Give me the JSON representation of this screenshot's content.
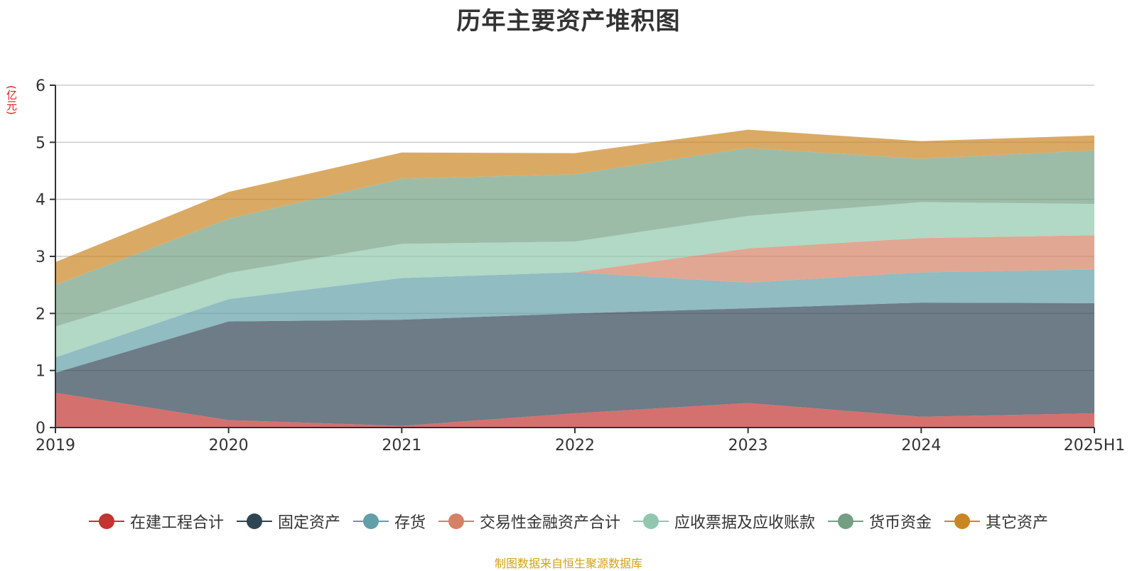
{
  "title": "历年主要资产堆积图",
  "y_unit": "(亿元)",
  "source_note": "制图数据来自恒生聚源数据库",
  "chart_data": {
    "type": "area",
    "stacked": true,
    "title": "历年主要资产堆积图",
    "ylabel": "(亿元)",
    "categories": [
      "2019",
      "2020",
      "2021",
      "2022",
      "2023",
      "2024",
      "2025H1"
    ],
    "ylim": [
      0,
      6
    ],
    "yticks": [
      0,
      1,
      2,
      3,
      4,
      5,
      6
    ],
    "grid": true,
    "legend_position": "bottom",
    "series": [
      {
        "name": "在建工程合计",
        "color": "#c23531",
        "values": [
          0.61,
          0.13,
          0.03,
          0.25,
          0.43,
          0.19,
          0.25
        ]
      },
      {
        "name": "固定资产",
        "color": "#2f4554",
        "values": [
          0.35,
          1.73,
          1.86,
          1.75,
          1.66,
          2.0,
          1.93
        ]
      },
      {
        "name": "存货",
        "color": "#61a0a8",
        "values": [
          0.27,
          0.39,
          0.73,
          0.72,
          0.45,
          0.53,
          0.59
        ]
      },
      {
        "name": "交易性金融资产合计",
        "color": "#d48265",
        "values": [
          0.0,
          0.0,
          0.0,
          0.0,
          0.6,
          0.6,
          0.6
        ]
      },
      {
        "name": "应收票据及应收账款",
        "color": "#91c7ae",
        "values": [
          0.54,
          0.46,
          0.6,
          0.54,
          0.57,
          0.63,
          0.55
        ]
      },
      {
        "name": "货币资金",
        "color": "#749f83",
        "values": [
          0.73,
          0.95,
          1.14,
          1.18,
          1.19,
          0.76,
          0.94
        ]
      },
      {
        "name": "其它资产",
        "color": "#ca8622",
        "values": [
          0.4,
          0.47,
          0.46,
          0.37,
          0.32,
          0.31,
          0.26
        ]
      }
    ]
  }
}
